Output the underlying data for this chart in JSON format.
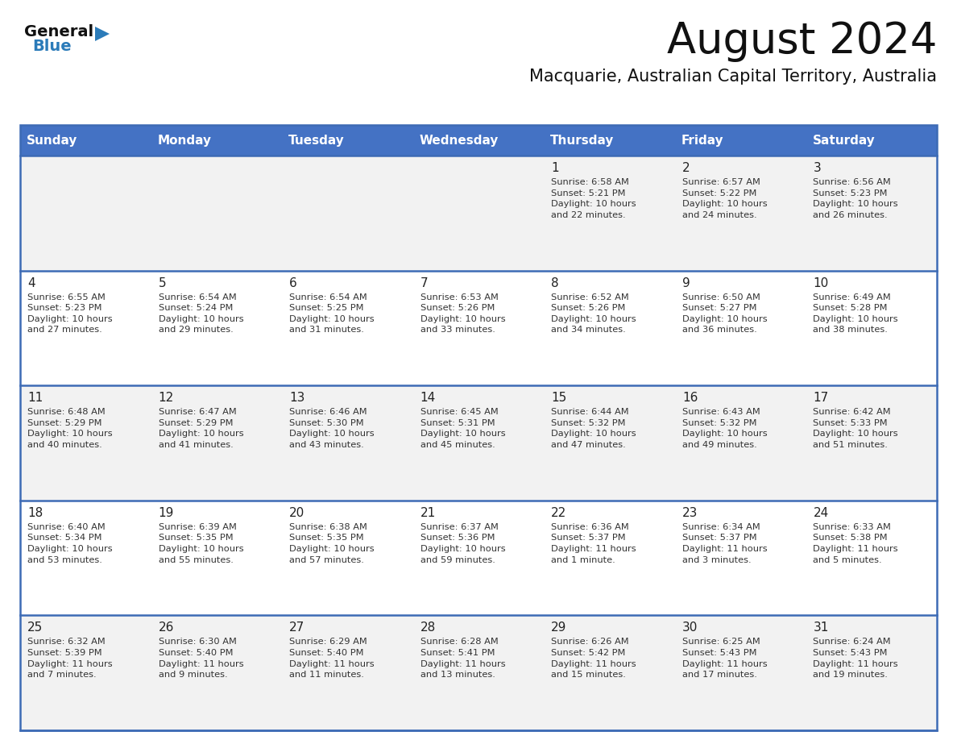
{
  "title": "August 2024",
  "subtitle": "Macquarie, Australian Capital Territory, Australia",
  "days_of_week": [
    "Sunday",
    "Monday",
    "Tuesday",
    "Wednesday",
    "Thursday",
    "Friday",
    "Saturday"
  ],
  "header_bg": "#4472C4",
  "header_text": "#FFFFFF",
  "row_bg_odd": "#F2F2F2",
  "row_bg_even": "#FFFFFF",
  "separator_color": "#3D6BB5",
  "day_number_color": "#222222",
  "text_color": "#333333",
  "title_color": "#111111",
  "subtitle_color": "#111111",
  "logo_general_color": "#111111",
  "logo_blue_color": "#2B7BB9",
  "logo_triangle_color": "#2B7BB9",
  "calendar_data": [
    [
      {
        "day": "",
        "info": ""
      },
      {
        "day": "",
        "info": ""
      },
      {
        "day": "",
        "info": ""
      },
      {
        "day": "",
        "info": ""
      },
      {
        "day": "1",
        "info": "Sunrise: 6:58 AM\nSunset: 5:21 PM\nDaylight: 10 hours\nand 22 minutes."
      },
      {
        "day": "2",
        "info": "Sunrise: 6:57 AM\nSunset: 5:22 PM\nDaylight: 10 hours\nand 24 minutes."
      },
      {
        "day": "3",
        "info": "Sunrise: 6:56 AM\nSunset: 5:23 PM\nDaylight: 10 hours\nand 26 minutes."
      }
    ],
    [
      {
        "day": "4",
        "info": "Sunrise: 6:55 AM\nSunset: 5:23 PM\nDaylight: 10 hours\nand 27 minutes."
      },
      {
        "day": "5",
        "info": "Sunrise: 6:54 AM\nSunset: 5:24 PM\nDaylight: 10 hours\nand 29 minutes."
      },
      {
        "day": "6",
        "info": "Sunrise: 6:54 AM\nSunset: 5:25 PM\nDaylight: 10 hours\nand 31 minutes."
      },
      {
        "day": "7",
        "info": "Sunrise: 6:53 AM\nSunset: 5:26 PM\nDaylight: 10 hours\nand 33 minutes."
      },
      {
        "day": "8",
        "info": "Sunrise: 6:52 AM\nSunset: 5:26 PM\nDaylight: 10 hours\nand 34 minutes."
      },
      {
        "day": "9",
        "info": "Sunrise: 6:50 AM\nSunset: 5:27 PM\nDaylight: 10 hours\nand 36 minutes."
      },
      {
        "day": "10",
        "info": "Sunrise: 6:49 AM\nSunset: 5:28 PM\nDaylight: 10 hours\nand 38 minutes."
      }
    ],
    [
      {
        "day": "11",
        "info": "Sunrise: 6:48 AM\nSunset: 5:29 PM\nDaylight: 10 hours\nand 40 minutes."
      },
      {
        "day": "12",
        "info": "Sunrise: 6:47 AM\nSunset: 5:29 PM\nDaylight: 10 hours\nand 41 minutes."
      },
      {
        "day": "13",
        "info": "Sunrise: 6:46 AM\nSunset: 5:30 PM\nDaylight: 10 hours\nand 43 minutes."
      },
      {
        "day": "14",
        "info": "Sunrise: 6:45 AM\nSunset: 5:31 PM\nDaylight: 10 hours\nand 45 minutes."
      },
      {
        "day": "15",
        "info": "Sunrise: 6:44 AM\nSunset: 5:32 PM\nDaylight: 10 hours\nand 47 minutes."
      },
      {
        "day": "16",
        "info": "Sunrise: 6:43 AM\nSunset: 5:32 PM\nDaylight: 10 hours\nand 49 minutes."
      },
      {
        "day": "17",
        "info": "Sunrise: 6:42 AM\nSunset: 5:33 PM\nDaylight: 10 hours\nand 51 minutes."
      }
    ],
    [
      {
        "day": "18",
        "info": "Sunrise: 6:40 AM\nSunset: 5:34 PM\nDaylight: 10 hours\nand 53 minutes."
      },
      {
        "day": "19",
        "info": "Sunrise: 6:39 AM\nSunset: 5:35 PM\nDaylight: 10 hours\nand 55 minutes."
      },
      {
        "day": "20",
        "info": "Sunrise: 6:38 AM\nSunset: 5:35 PM\nDaylight: 10 hours\nand 57 minutes."
      },
      {
        "day": "21",
        "info": "Sunrise: 6:37 AM\nSunset: 5:36 PM\nDaylight: 10 hours\nand 59 minutes."
      },
      {
        "day": "22",
        "info": "Sunrise: 6:36 AM\nSunset: 5:37 PM\nDaylight: 11 hours\nand 1 minute."
      },
      {
        "day": "23",
        "info": "Sunrise: 6:34 AM\nSunset: 5:37 PM\nDaylight: 11 hours\nand 3 minutes."
      },
      {
        "day": "24",
        "info": "Sunrise: 6:33 AM\nSunset: 5:38 PM\nDaylight: 11 hours\nand 5 minutes."
      }
    ],
    [
      {
        "day": "25",
        "info": "Sunrise: 6:32 AM\nSunset: 5:39 PM\nDaylight: 11 hours\nand 7 minutes."
      },
      {
        "day": "26",
        "info": "Sunrise: 6:30 AM\nSunset: 5:40 PM\nDaylight: 11 hours\nand 9 minutes."
      },
      {
        "day": "27",
        "info": "Sunrise: 6:29 AM\nSunset: 5:40 PM\nDaylight: 11 hours\nand 11 minutes."
      },
      {
        "day": "28",
        "info": "Sunrise: 6:28 AM\nSunset: 5:41 PM\nDaylight: 11 hours\nand 13 minutes."
      },
      {
        "day": "29",
        "info": "Sunrise: 6:26 AM\nSunset: 5:42 PM\nDaylight: 11 hours\nand 15 minutes."
      },
      {
        "day": "30",
        "info": "Sunrise: 6:25 AM\nSunset: 5:43 PM\nDaylight: 11 hours\nand 17 minutes."
      },
      {
        "day": "31",
        "info": "Sunrise: 6:24 AM\nSunset: 5:43 PM\nDaylight: 11 hours\nand 19 minutes."
      }
    ]
  ]
}
